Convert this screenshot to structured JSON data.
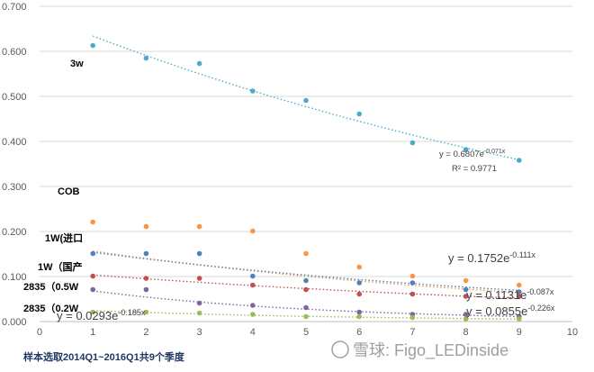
{
  "chart_data": {
    "type": "scatter",
    "title": "",
    "xlabel": "",
    "ylabel": "",
    "xlim": [
      0,
      10
    ],
    "ylim": [
      0,
      0.7
    ],
    "x_ticks": [
      0,
      1,
      2,
      3,
      4,
      5,
      6,
      7,
      8,
      9,
      10
    ],
    "y_ticks": [
      "0.000",
      "0.100",
      "0.200",
      "0.300",
      "0.400",
      "0.500",
      "0.600",
      "0.700"
    ],
    "grid": "horizontal",
    "series": [
      {
        "name": "3w",
        "color": "#4bacc6",
        "x": [
          1,
          2,
          3,
          4,
          5,
          6,
          7,
          8,
          9
        ],
        "y": [
          0.613,
          0.585,
          0.573,
          0.512,
          0.491,
          0.461,
          0.397,
          0.382,
          0.358
        ],
        "trend": {
          "a": 0.6807,
          "b": -0.071
        },
        "equation": {
          "prefix": "y = 0.6807e",
          "exponent": "-0.071x"
        },
        "r2": "R² = 0.9771"
      },
      {
        "name": "COB",
        "color": "#f79646",
        "x": [
          1,
          2,
          3,
          4,
          5,
          6,
          7,
          8,
          9
        ],
        "y": [
          0.221,
          0.211,
          0.211,
          0.201,
          0.151,
          0.121,
          0.101,
          0.091,
          0.081
        ],
        "trend": {
          "a": 0.1752,
          "b": -0.111
        },
        "equation": {
          "prefix": "y = 0.1752e",
          "exponent": "-0.111x"
        }
      },
      {
        "name": "1W(进口",
        "color": "#4f81bd",
        "x": [
          1,
          2,
          3,
          4,
          5,
          6,
          7,
          8,
          9
        ],
        "y": [
          0.151,
          0.151,
          0.151,
          0.101,
          0.091,
          0.086,
          0.086,
          0.071,
          0.066
        ],
        "trend": {
          "a": 0.17,
          "b": -0.1
        }
      },
      {
        "name": "1W（国产",
        "color": "#c0504d",
        "x": [
          1,
          2,
          3,
          4,
          5,
          6,
          7,
          8,
          9
        ],
        "y": [
          0.101,
          0.096,
          0.096,
          0.081,
          0.071,
          0.061,
          0.061,
          0.056,
          0.056
        ],
        "trend": {
          "a": 0.1131,
          "b": -0.087
        },
        "equation": {
          "prefix": "y = 0.1131e",
          "exponent": "-0.087x"
        }
      },
      {
        "name": "2835（0.5W",
        "color": "#8064a2",
        "x": [
          1,
          2,
          3,
          4,
          5,
          6,
          7,
          8,
          9
        ],
        "y": [
          0.071,
          0.071,
          0.041,
          0.036,
          0.031,
          0.021,
          0.016,
          0.016,
          0.011
        ],
        "trend": {
          "a": 0.0855,
          "b": -0.226
        },
        "equation": {
          "prefix": "y = 0.0855e",
          "exponent": "-0.226x"
        }
      },
      {
        "name": "2835（0.2W",
        "color": "#9bbb59",
        "x": [
          1,
          2,
          3,
          4,
          5,
          6,
          7,
          8,
          9
        ],
        "y": [
          0.021,
          0.021,
          0.019,
          0.016,
          0.011,
          0.011,
          0.009,
          0.006,
          0.006
        ],
        "trend": {
          "a": 0.0293,
          "b": -0.185
        },
        "equation": {
          "prefix": "y = 0.0293e",
          "exponent": "-0.185x"
        }
      }
    ]
  },
  "footnote": "样本选取2014Q1~2016Q1共9个季度",
  "watermark": "雪球: Figo_LEDinside"
}
